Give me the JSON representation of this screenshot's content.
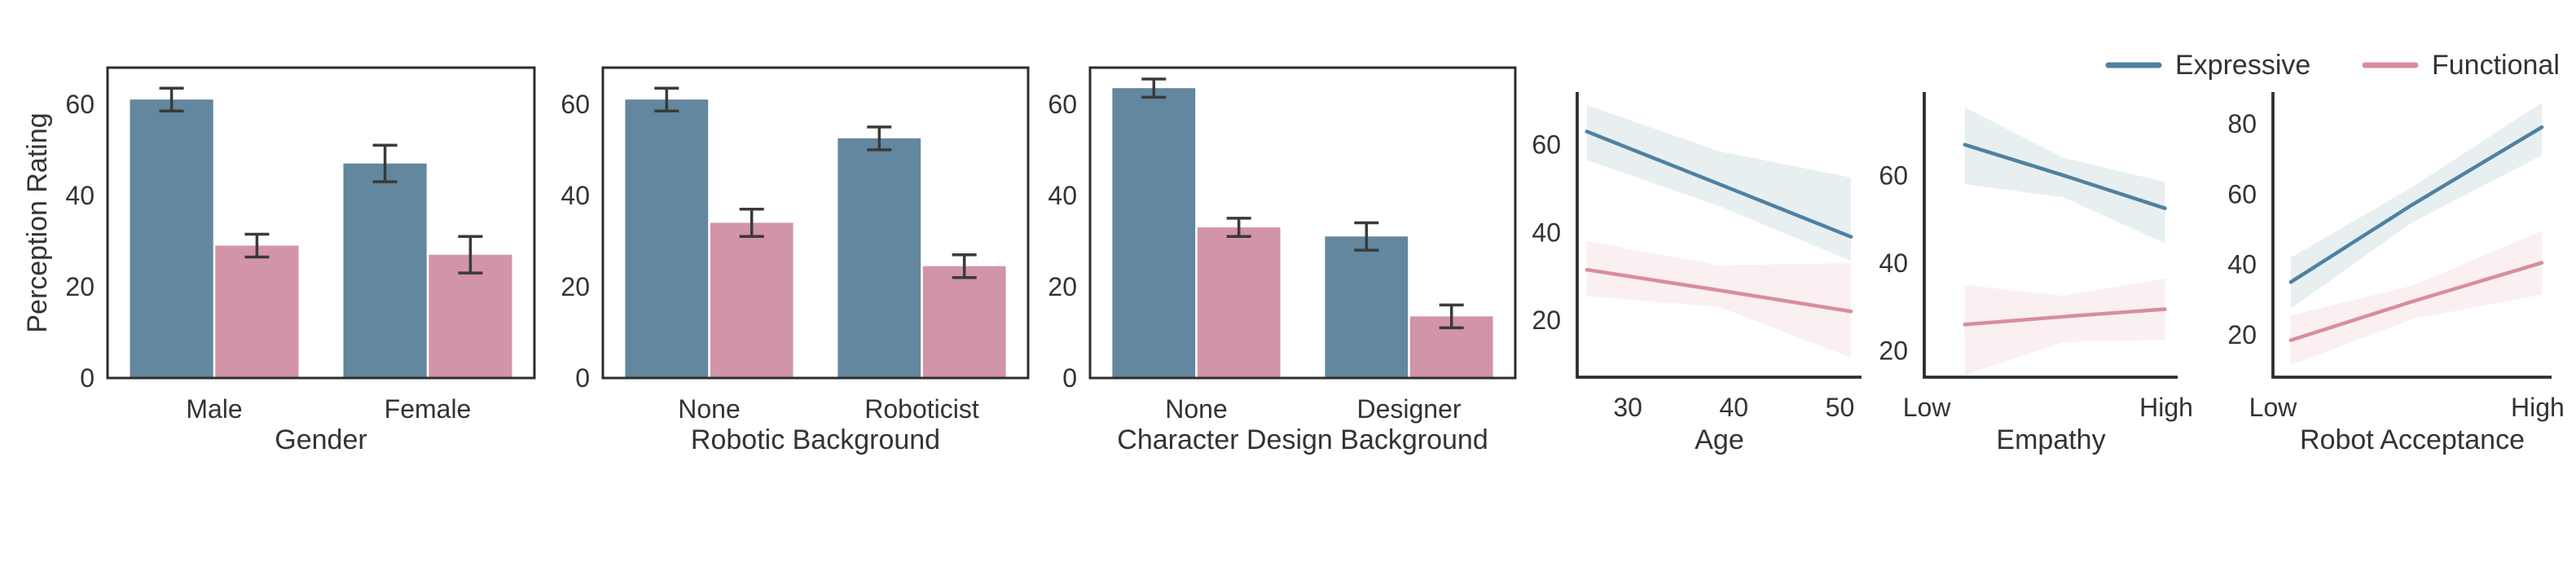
{
  "figure": {
    "background": "#ffffff",
    "text_color": "#333333",
    "spine_color": "#2e2e2e",
    "error_bar_color": "#3a3a3a",
    "ylabel": "Perception Rating",
    "legend": {
      "items": [
        {
          "label": "Expressive",
          "color": "#4e81a3"
        },
        {
          "label": "Functional",
          "color": "#d88d9e"
        }
      ]
    }
  },
  "chart_data": [
    {
      "type": "bar",
      "xlabel": "Gender",
      "ylabel": "Perception Rating",
      "categories": [
        "Male",
        "Female"
      ],
      "yticks": [
        0,
        20,
        40,
        60
      ],
      "ylim": [
        0,
        68
      ],
      "legend_position": "none",
      "grid": false,
      "series": [
        {
          "name": "Expressive",
          "color": "#62879e",
          "values": [
            61,
            47
          ],
          "errors": [
            2.5,
            4
          ]
        },
        {
          "name": "Functional",
          "color": "#d294a7",
          "values": [
            29,
            27
          ],
          "errors": [
            2.5,
            4
          ]
        }
      ]
    },
    {
      "type": "bar",
      "xlabel": "Robotic Background",
      "categories": [
        "None",
        "Roboticist"
      ],
      "yticks": [
        0,
        20,
        40,
        60
      ],
      "ylim": [
        0,
        68
      ],
      "grid": false,
      "series": [
        {
          "name": "Expressive",
          "color": "#62879e",
          "values": [
            61,
            52.5
          ],
          "errors": [
            2.5,
            2.5
          ]
        },
        {
          "name": "Functional",
          "color": "#d294a7",
          "values": [
            34,
            24.5
          ],
          "errors": [
            3,
            2.5
          ]
        }
      ]
    },
    {
      "type": "bar",
      "xlabel": "Character Design Background",
      "categories": [
        "None",
        "Designer"
      ],
      "yticks": [
        0,
        20,
        40,
        60
      ],
      "ylim": [
        0,
        68
      ],
      "grid": false,
      "series": [
        {
          "name": "Expressive",
          "color": "#62879e",
          "values": [
            63.5,
            31
          ],
          "errors": [
            2,
            3
          ]
        },
        {
          "name": "Functional",
          "color": "#d294a7",
          "values": [
            33,
            13.5
          ],
          "errors": [
            2,
            2.5
          ]
        }
      ]
    },
    {
      "type": "line",
      "xlabel": "Age",
      "xticks": [
        {
          "label": "30",
          "pos": 0.178
        },
        {
          "label": "40",
          "pos": 0.551
        },
        {
          "label": "50",
          "pos": 0.924
        }
      ],
      "yticks": [
        20,
        40,
        60
      ],
      "ylim": [
        7,
        72
      ],
      "grid": false,
      "series": [
        {
          "name": "Expressive",
          "color": "#4e81a3",
          "band_color": "#e5edf0",
          "x": [
            0.034,
            0.5,
            0.963
          ],
          "y": [
            63,
            51,
            39
          ],
          "band_top": [
            69,
            58.5,
            52.5
          ],
          "band_bottom": [
            56.5,
            46,
            33.5
          ]
        },
        {
          "name": "Functional",
          "color": "#d88d9e",
          "band_color": "#f9edf0",
          "x": [
            0.034,
            0.5,
            0.963
          ],
          "y": [
            31.5,
            26.8,
            22
          ],
          "band_top": [
            38,
            32.5,
            33
          ],
          "band_bottom": [
            25.5,
            23,
            11.5
          ]
        }
      ]
    },
    {
      "type": "line",
      "xlabel": "Empathy",
      "xticks": [
        {
          "label": "Low",
          "pos": 0.01
        },
        {
          "label": "High",
          "pos": 0.955
        }
      ],
      "yticks": [
        20,
        40,
        60
      ],
      "ylim": [
        14,
        79
      ],
      "grid": false,
      "series": [
        {
          "name": "Expressive",
          "color": "#4e81a3",
          "band_color": "#e5edf0",
          "x": [
            0.16,
            0.55,
            0.95
          ],
          "y": [
            67,
            60,
            52.5
          ],
          "band_top": [
            75.5,
            64,
            58.5
          ],
          "band_bottom": [
            58,
            55,
            44.5
          ]
        },
        {
          "name": "Functional",
          "color": "#d88d9e",
          "band_color": "#f9edf0",
          "x": [
            0.16,
            0.55,
            0.95
          ],
          "y": [
            26,
            27.8,
            29.5
          ],
          "band_top": [
            35,
            32.5,
            36.5
          ],
          "band_bottom": [
            14.5,
            22,
            22.5
          ]
        }
      ]
    },
    {
      "type": "line",
      "xlabel": "Robot Acceptance",
      "xticks": [
        {
          "label": "Low",
          "pos": 0.0
        },
        {
          "label": "High",
          "pos": 0.95
        }
      ],
      "yticks": [
        20,
        40,
        60,
        80
      ],
      "ylim": [
        8,
        89
      ],
      "grid": false,
      "series": [
        {
          "name": "Expressive",
          "color": "#4e81a3",
          "band_color": "#e5edf0",
          "x": [
            0.064,
            0.5,
            0.965
          ],
          "y": [
            35,
            57,
            79
          ],
          "band_top": [
            42,
            62,
            86
          ],
          "band_bottom": [
            27.5,
            52,
            71
          ]
        },
        {
          "name": "Functional",
          "color": "#d88d9e",
          "band_color": "#f9edf0",
          "x": [
            0.064,
            0.5,
            0.965
          ],
          "y": [
            18.5,
            29.5,
            40.5
          ],
          "band_top": [
            25.5,
            34,
            49.5
          ],
          "band_bottom": [
            11.5,
            24.5,
            31.5
          ]
        }
      ]
    }
  ]
}
